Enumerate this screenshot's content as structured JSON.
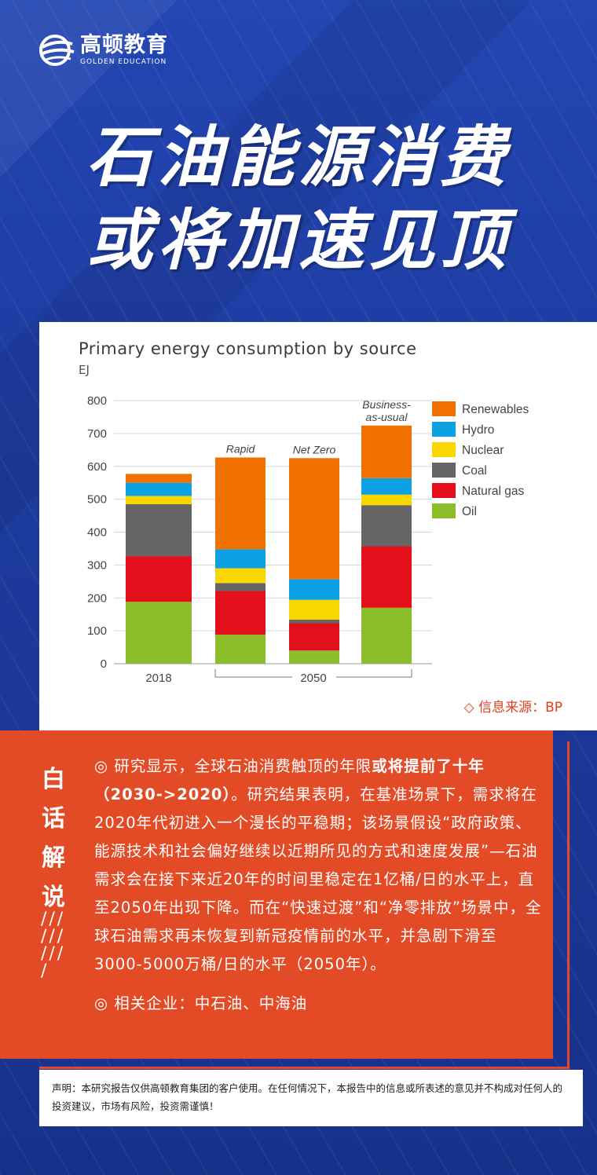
{
  "brand": {
    "name_cn": "高顿教育",
    "name_en": "GOLDEN EDUCATION"
  },
  "headline": {
    "line1": "石油能源消费",
    "line2": "或将加速见顶"
  },
  "chart_data": {
    "type": "bar",
    "stacked": true,
    "title": "Primary energy consumption by source",
    "unit": "EJ",
    "ylim": [
      0,
      800
    ],
    "yticks": [
      0,
      100,
      200,
      300,
      400,
      500,
      600,
      700,
      800
    ],
    "grid": true,
    "legend_position": "right",
    "categories": [
      "2018",
      "Rapid",
      "Net Zero",
      "Business-as-usual"
    ],
    "scenario_labels": [
      "",
      "Rapid",
      "Net Zero",
      "Business-as-usual"
    ],
    "x_labels": [
      "2018",
      "2050"
    ],
    "series": [
      {
        "name": "Oil",
        "color": "#8cbd2a",
        "values": [
          188,
          88,
          40,
          170
        ]
      },
      {
        "name": "Natural gas",
        "color": "#e3101b",
        "values": [
          139,
          133,
          83,
          187
        ]
      },
      {
        "name": "Coal",
        "color": "#656565",
        "values": [
          158,
          24,
          11,
          125
        ]
      },
      {
        "name": "Nuclear",
        "color": "#fbd700",
        "values": [
          25,
          45,
          60,
          32
        ]
      },
      {
        "name": "Hydro",
        "color": "#0da0e2",
        "values": [
          40,
          58,
          63,
          50
        ]
      },
      {
        "name": "Renewables",
        "color": "#f07000",
        "values": [
          27,
          279,
          368,
          160
        ]
      }
    ]
  },
  "source_label": "◇ 信息来源：BP",
  "commentary": {
    "side_title": [
      "白",
      "话",
      "解",
      "说"
    ],
    "slashes": "/ / / / / / / / / /",
    "para1_prefix": "◎ 研究显示，全球石油消费触顶的年限",
    "para1_bold": "或将提前了十年（2030->2020）",
    "para1_rest": "。研究结果表明，在基准场景下，需求将在2020年代初进入一个漫长的平稳期；该场景假设“政府政策、能源技术和社会偏好继续以近期所见的方式和速度发展”—石油需求会在接下来近20年的时间里稳定在1亿桶/日的水平上，直至2050年出现下降。而在“快速过渡”和“净零排放”场景中，全球石油需求再未恢复到新冠疫情前的水平，并急剧下滑至3000-5000万桶/日的水平（2050年）。",
    "para2": "◎ 相关企业：中石油、中海油"
  },
  "disclaimer": "声明：本研究报告仅供高顿教育集团的客户使用。在任何情况下，本报告中的信息或所表述的意见并不构成对任何人的投资建议，市场有风险，投资需谨慎！",
  "colors": {
    "brand_blue": "#1f3c9c",
    "accent_red": "#e34a26"
  }
}
